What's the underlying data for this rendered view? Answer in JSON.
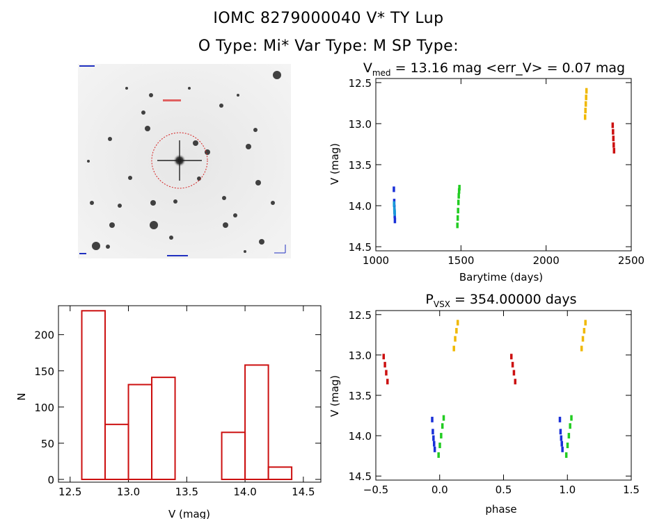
{
  "header": {
    "line1": "IOMC 8279000040    V* TY Lup",
    "line2": "O Type: Mi*   Var Type: M   SP Type:"
  },
  "finder_chart": {
    "marker_color": "#d42020",
    "label_color": "#2030c0"
  },
  "chart_data": [
    {
      "id": "lightcurve",
      "type": "scatter",
      "title_parts": [
        "V",
        "med",
        " = 13.16 mag <err_V> = 0.07 mag"
      ],
      "xlabel": "Barytime (days)",
      "ylabel": "V (mag)",
      "xlim": [
        1000,
        2500
      ],
      "ylim": [
        14.5,
        12.5
      ],
      "xticks": [
        1000,
        1500,
        2000,
        2500
      ],
      "yticks": [
        "12.5",
        "13.0",
        "13.5",
        "14.0",
        "14.5"
      ],
      "series": [
        {
          "color": "#1a30d8",
          "points": [
            [
              1105,
              13.8
            ],
            [
              1107,
              13.95
            ],
            [
              1108,
              14.02
            ],
            [
              1109,
              14.07
            ],
            [
              1110,
              14.12
            ],
            [
              1111,
              14.18
            ]
          ]
        },
        {
          "color": "#1a9ad8",
          "points": [
            [
              1106,
              13.98
            ],
            [
              1108,
              14.05
            ],
            [
              1110,
              14.09
            ]
          ]
        },
        {
          "color": "#22cc22",
          "points": [
            [
              1478,
              14.24
            ],
            [
              1480,
              14.15
            ],
            [
              1482,
              14.06
            ],
            [
              1484,
              13.96
            ],
            [
              1486,
              13.88
            ],
            [
              1488,
              13.82
            ],
            [
              1490,
              13.78
            ]
          ]
        },
        {
          "color": "#f0b800",
          "points": [
            [
              2228,
              12.92
            ],
            [
              2230,
              12.84
            ],
            [
              2232,
              12.76
            ],
            [
              2234,
              12.68
            ],
            [
              2236,
              12.6
            ]
          ]
        },
        {
          "color": "#cc1010",
          "points": [
            [
              2390,
              13.02
            ],
            [
              2392,
              13.1
            ],
            [
              2394,
              13.18
            ],
            [
              2396,
              13.26
            ],
            [
              2398,
              13.33
            ]
          ]
        }
      ]
    },
    {
      "id": "histogram",
      "type": "bar",
      "xlabel": "V (mag)",
      "ylabel": "N",
      "xlim": [
        12.4,
        14.65
      ],
      "ylim": [
        0,
        240
      ],
      "xticks": [
        "12.5",
        "13.0",
        "13.5",
        "14.0",
        "14.5"
      ],
      "yticks": [
        "0",
        "50",
        "100",
        "150",
        "200"
      ],
      "bin_edges": [
        12.6,
        12.8,
        13.0,
        13.2,
        13.4,
        13.6,
        13.8,
        14.0,
        14.2,
        14.4
      ],
      "values": [
        233,
        76,
        131,
        141,
        0,
        0,
        65,
        158,
        17
      ],
      "color": "#cc1010"
    },
    {
      "id": "phased",
      "type": "scatter",
      "title_parts": [
        "P",
        "VSX",
        " = 354.00000 days"
      ],
      "xlabel": "phase",
      "ylabel": "V (mag)",
      "xlim": [
        -0.5,
        1.5
      ],
      "ylim": [
        14.5,
        12.5
      ],
      "xticks": [
        "−0.5",
        "0.0",
        "0.5",
        "1.0",
        "1.5"
      ],
      "yticks": [
        "12.5",
        "13.0",
        "13.5",
        "14.0",
        "14.5"
      ],
      "series": [
        {
          "color": "#1a30d8",
          "points": [
            [
              -0.06,
              13.8
            ],
            [
              -0.055,
              13.95
            ],
            [
              -0.05,
              14.03
            ],
            [
              -0.045,
              14.1
            ],
            [
              -0.04,
              14.17
            ],
            [
              0.94,
              13.8
            ],
            [
              0.945,
              13.95
            ],
            [
              0.95,
              14.03
            ],
            [
              0.955,
              14.1
            ],
            [
              0.96,
              14.17
            ]
          ]
        },
        {
          "color": "#22cc22",
          "points": [
            [
              -0.01,
              14.24
            ],
            [
              0.0,
              14.12
            ],
            [
              0.01,
              14.0
            ],
            [
              0.02,
              13.88
            ],
            [
              0.03,
              13.78
            ],
            [
              0.99,
              14.24
            ],
            [
              1.0,
              14.12
            ],
            [
              1.01,
              14.0
            ],
            [
              1.02,
              13.88
            ],
            [
              1.03,
              13.78
            ]
          ]
        },
        {
          "color": "#f0b800",
          "points": [
            [
              0.11,
              12.92
            ],
            [
              0.12,
              12.8
            ],
            [
              0.13,
              12.7
            ],
            [
              0.14,
              12.6
            ],
            [
              1.11,
              12.92
            ],
            [
              1.12,
              12.8
            ],
            [
              1.13,
              12.7
            ],
            [
              1.14,
              12.6
            ]
          ]
        },
        {
          "color": "#cc1010",
          "points": [
            [
              -0.44,
              13.02
            ],
            [
              -0.43,
              13.12
            ],
            [
              -0.42,
              13.22
            ],
            [
              -0.41,
              13.33
            ],
            [
              0.56,
              13.02
            ],
            [
              0.57,
              13.12
            ],
            [
              0.58,
              13.22
            ],
            [
              0.59,
              13.33
            ]
          ]
        }
      ]
    }
  ]
}
